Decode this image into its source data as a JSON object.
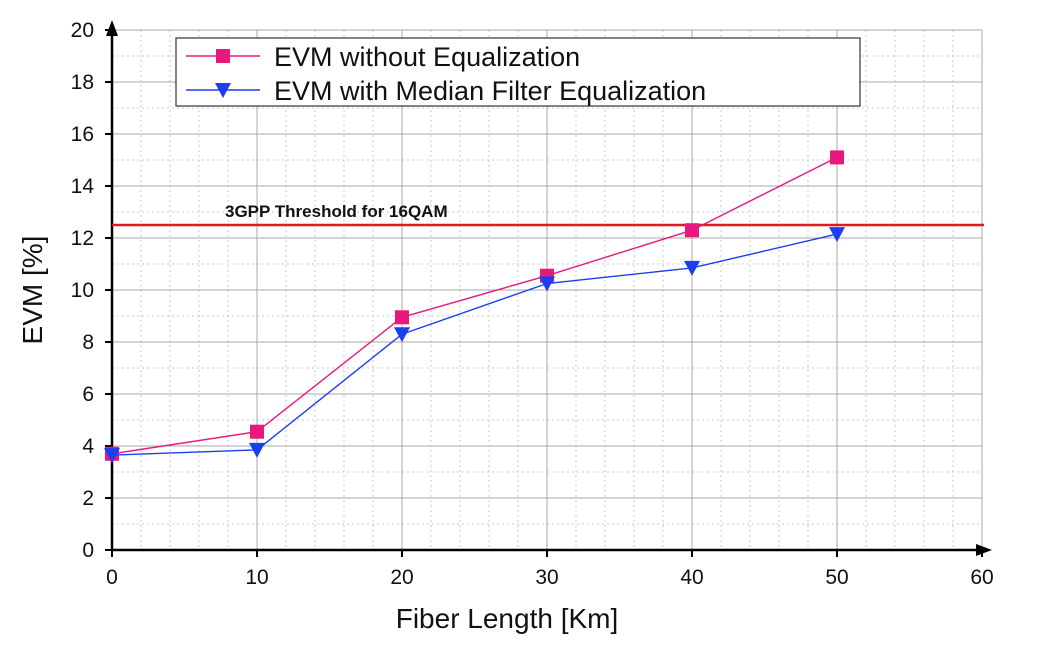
{
  "chart_data": {
    "type": "line",
    "title": "",
    "xlabel": "Fiber Length [Km]",
    "ylabel": "EVM [%]",
    "xlim": [
      0,
      60
    ],
    "ylim": [
      0,
      20
    ],
    "x_ticks": [
      0,
      10,
      20,
      30,
      40,
      50,
      60
    ],
    "y_ticks": [
      0,
      2,
      4,
      6,
      8,
      10,
      12,
      14,
      16,
      18,
      20
    ],
    "x_tick_labels": [
      "0",
      "10",
      "20",
      "30",
      "40",
      "50",
      "60"
    ],
    "y_tick_labels": [
      "0",
      "2",
      "4",
      "6",
      "8",
      "10",
      "12",
      "14",
      "16",
      "18",
      "20"
    ],
    "grid": true,
    "legend_position": "top-center",
    "series": [
      {
        "name": "EVM without Equalization",
        "color": "#e8197d",
        "marker": "square",
        "x": [
          0,
          10,
          20,
          30,
          40,
          50
        ],
        "values": [
          3.7,
          4.55,
          8.95,
          10.55,
          12.3,
          15.1
        ]
      },
      {
        "name": "EVM with Median Filter Equalization",
        "color": "#1a3ff0",
        "marker": "triangle-down",
        "x": [
          0,
          10,
          20,
          30,
          40,
          50
        ],
        "values": [
          3.65,
          3.85,
          8.3,
          10.25,
          10.85,
          12.15
        ]
      }
    ],
    "reference_lines": [
      {
        "label": "3GPP Threshold for 16QAM",
        "y": 12.5,
        "color": "#e0191c"
      }
    ]
  }
}
